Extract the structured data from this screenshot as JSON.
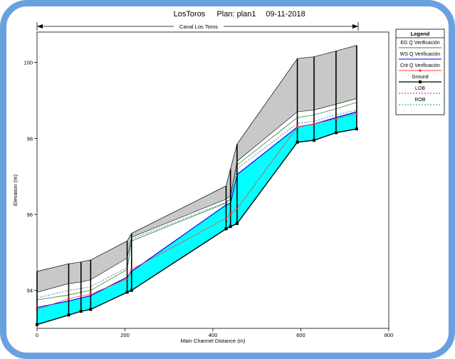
{
  "chart_data": {
    "type": "line",
    "title_parts": [
      "LosToros",
      "Plan: plan1",
      "09-11-2018"
    ],
    "reach_label": "Canal Los Toros",
    "xlabel": "Main Channel Distance (m)",
    "ylabel": "Elevation (m)",
    "xlim": [
      0,
      800
    ],
    "ylim": [
      93.0,
      100.8
    ],
    "x_ticks": [
      0,
      200,
      400,
      600,
      800
    ],
    "y_ticks": [
      94,
      96,
      98,
      100
    ],
    "legend": {
      "title": "Legend",
      "placement": "top-right",
      "entries": [
        "EG  Q Verificación",
        "WS  Q Verificación",
        "Crit  Q Verificación",
        "Ground",
        "LOB",
        "ROB"
      ]
    },
    "stations": [
      0,
      72,
      100,
      122,
      205,
      215,
      430,
      440,
      455,
      592,
      630,
      680,
      727
    ],
    "series": [
      {
        "name": "Ground",
        "x": [
          0,
          72,
          100,
          122,
          205,
          215,
          430,
          440,
          455,
          592,
          630,
          680,
          727
        ],
        "y": [
          93.1,
          93.35,
          93.45,
          93.5,
          93.95,
          94.0,
          95.62,
          95.68,
          95.76,
          97.9,
          97.95,
          98.15,
          98.25
        ]
      },
      {
        "name": "WS  Q Verificación",
        "x": [
          0,
          72,
          100,
          122,
          205,
          215,
          430,
          440,
          455,
          592,
          630,
          680,
          727
        ],
        "y": [
          93.55,
          93.72,
          93.8,
          93.86,
          94.35,
          94.5,
          96.25,
          96.3,
          97.05,
          98.3,
          98.38,
          98.55,
          98.7
        ]
      },
      {
        "name": "Crit  Q Verificación",
        "x": [
          0,
          72,
          100,
          122,
          205,
          215,
          430,
          440,
          455,
          592,
          630,
          680,
          727
        ],
        "y": [
          93.5,
          93.78,
          93.85,
          93.9,
          94.3,
          94.55,
          95.9,
          96.0,
          96.15,
          98.3,
          98.38,
          98.52,
          98.65
        ]
      },
      {
        "name": "EG  Q Verificación",
        "x": [
          0,
          72,
          100,
          122,
          205,
          215,
          430,
          440,
          455,
          592,
          630,
          680,
          727
        ],
        "y": [
          93.75,
          93.88,
          93.95,
          94.0,
          94.55,
          95.3,
          96.3,
          96.4,
          97.3,
          98.55,
          98.62,
          98.78,
          98.95
        ]
      },
      {
        "name": "LOB",
        "x": [
          0,
          72,
          100,
          122,
          205,
          215,
          430,
          440,
          455,
          592,
          630,
          680,
          727
        ],
        "y": [
          93.8,
          94.0,
          94.05,
          94.1,
          94.6,
          95.35,
          96.32,
          96.45,
          97.2,
          98.4,
          98.45,
          98.62,
          98.75
        ]
      },
      {
        "name": "ROB",
        "x": [
          0,
          72,
          100,
          122,
          205,
          215,
          430,
          440,
          455,
          592,
          630,
          680,
          727
        ],
        "y": [
          93.8,
          94.0,
          94.05,
          94.1,
          94.6,
          95.35,
          96.32,
          96.45,
          97.2,
          98.4,
          98.45,
          98.62,
          98.75
        ]
      },
      {
        "name": "bank_top",
        "x": [
          0,
          72,
          100,
          122,
          205,
          215,
          430,
          440,
          455,
          592,
          630,
          680,
          727
        ],
        "y": [
          93.95,
          94.18,
          94.22,
          94.28,
          94.85,
          95.4,
          96.4,
          96.5,
          97.4,
          98.7,
          98.75,
          98.9,
          99.05
        ]
      },
      {
        "name": "top",
        "x": [
          0,
          72,
          100,
          122,
          205,
          215,
          430,
          440,
          455,
          592,
          630,
          680,
          727
        ],
        "y": [
          94.5,
          94.7,
          94.75,
          94.8,
          95.3,
          95.5,
          96.75,
          97.2,
          97.85,
          100.1,
          100.15,
          100.3,
          100.45
        ]
      }
    ],
    "colors": {
      "water": "#00ffff",
      "water_deep": "#0000ff",
      "ground_fill": "#c8c8c8",
      "ground_line": "#000000",
      "eg": "#2e8b2e",
      "ws": "#e00000",
      "crit": "#ff4040",
      "lob": "#cc00cc",
      "rob": "#00a0a0",
      "frame": "#6aa0e0"
    }
  }
}
